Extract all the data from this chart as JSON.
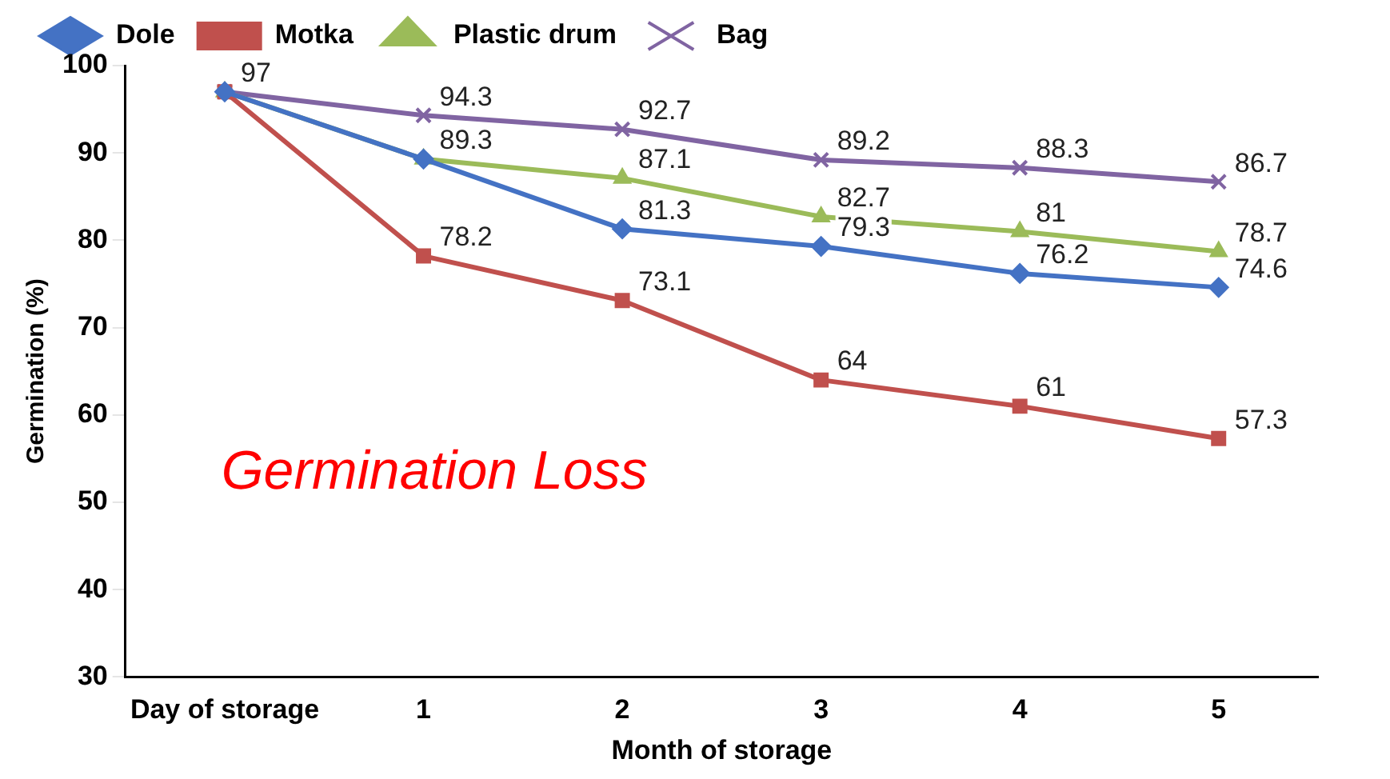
{
  "chart_data": {
    "type": "line",
    "xlabel": "Month of storage",
    "ylabel": "Germination (%)",
    "categories": [
      "Day of storage",
      "1",
      "2",
      "3",
      "4",
      "5"
    ],
    "ylim": [
      30,
      100
    ],
    "yticks": [
      30,
      40,
      50,
      60,
      70,
      80,
      90,
      100
    ],
    "grid": false,
    "legend": "top",
    "annotations": [
      "Germination Loss"
    ],
    "series": [
      {
        "name": "Dole",
        "color": "#4472c4",
        "marker": "diamond",
        "values": [
          97,
          89.3,
          81.3,
          79.3,
          76.2,
          74.6
        ],
        "value_labels": [
          null,
          "89.3",
          "81.3",
          "79.3",
          "76.2",
          "74.6"
        ]
      },
      {
        "name": "Motka",
        "color": "#c0504d",
        "marker": "square",
        "values": [
          97,
          78.2,
          73.1,
          64,
          61,
          57.3
        ],
        "value_labels": [
          null,
          "78.2",
          "73.1",
          "64",
          "61",
          "57.3"
        ]
      },
      {
        "name": "Plastic drum",
        "color": "#9bbb59",
        "marker": "triangle",
        "values": [
          97,
          89.3,
          87.1,
          82.7,
          81,
          78.7
        ],
        "value_labels": [
          null,
          null,
          "87.1",
          "82.7",
          "81",
          "78.7"
        ]
      },
      {
        "name": "Bag",
        "color": "#8064a2",
        "marker": "cross",
        "values": [
          97,
          94.3,
          92.7,
          89.2,
          88.3,
          86.7
        ],
        "value_labels": [
          "97",
          "94.3",
          "92.7",
          "89.2",
          "88.3",
          "86.7"
        ]
      }
    ]
  }
}
